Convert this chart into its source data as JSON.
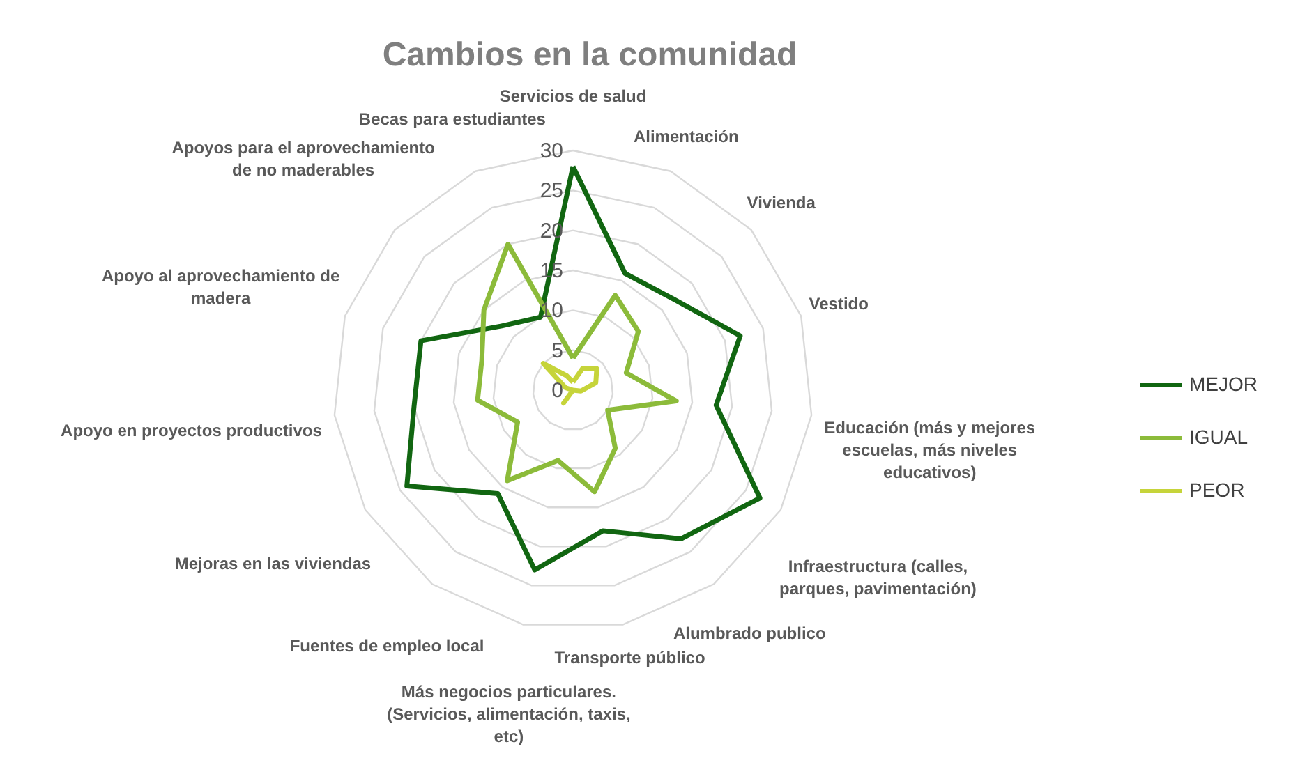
{
  "chart_data": {
    "type": "radar",
    "title": "Cambios en la comunidad",
    "categories": [
      "Servicios de salud",
      "Alimentación",
      "Vivienda",
      "Vestido",
      "Educación (más y mejores escuelas, más niveles educativos)",
      "Infraestructura (calles, parques, pavimentación)",
      "Alumbrado publico",
      "Transporte público",
      "Más negocios particulares. (Servicios, alimentación, taxis, etc)",
      "Fuentes de empleo local",
      "Mejoras en las viviendas",
      "Apoyo en proyectos productivos",
      "Apoyo al aprovechamiento de madera",
      "Apoyos para el aprovechamiento de no maderables",
      "Becas para estudiantes"
    ],
    "series": [
      {
        "name": "MEJOR",
        "color": "#116611",
        "values": [
          28,
          16,
          17,
          22,
          18,
          27,
          23,
          18,
          23,
          16,
          24,
          20,
          20,
          12,
          10
        ]
      },
      {
        "name": "IGUAL",
        "color": "#8cbb3a",
        "values": [
          4,
          13,
          11,
          7,
          13,
          5,
          9,
          13,
          9,
          14,
          8,
          12,
          12,
          15,
          20
        ]
      },
      {
        "name": "PEOR",
        "color": "#c6d43a",
        "values": [
          1,
          3,
          4,
          3,
          1,
          0,
          0,
          0,
          0,
          2,
          0,
          0,
          1,
          5,
          2
        ]
      }
    ],
    "ylim": [
      0,
      30
    ],
    "yticks": [
      0,
      5,
      10,
      15,
      20,
      25,
      30
    ],
    "grid": true,
    "legend": "right"
  }
}
